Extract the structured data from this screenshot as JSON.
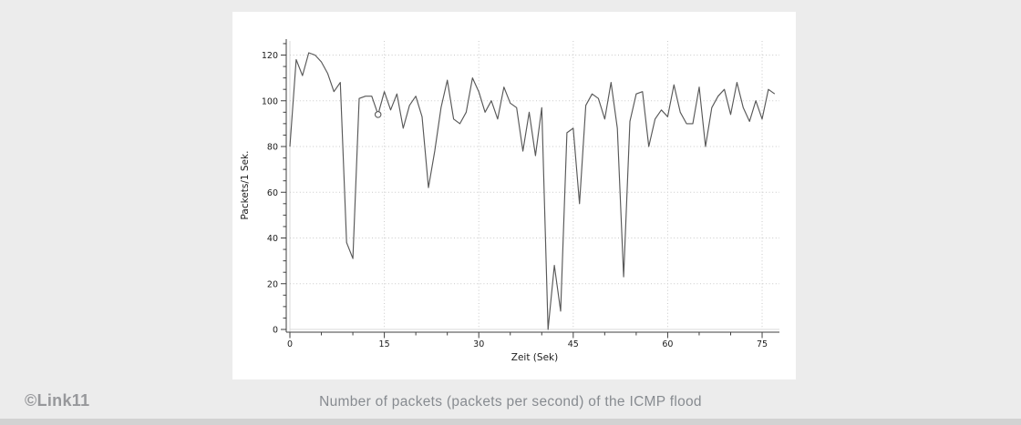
{
  "page": {
    "watermark": "©Link11",
    "caption": "Number of packets (packets per second) of the ICMP flood",
    "background_color": "#ececec",
    "panel_color": "#ffffff"
  },
  "chart_data": {
    "type": "line",
    "title": "",
    "xlabel": "Zeit (Sek)",
    "ylabel": "Packets/1 Sek.",
    "x_ticks": [
      0,
      15,
      30,
      45,
      60,
      75
    ],
    "y_ticks": [
      0,
      20,
      40,
      60,
      80,
      100,
      120
    ],
    "x_minor_step": 5,
    "y_minor_step": 5,
    "xlim": [
      0,
      78
    ],
    "ylim": [
      0,
      126
    ],
    "grid": "dotted",
    "legend": "none",
    "x_start": 0,
    "x_step": 1,
    "values": [
      80,
      118,
      111,
      121,
      120,
      117,
      112,
      104,
      108,
      38,
      31,
      101,
      102,
      102,
      94,
      104,
      96,
      103,
      88,
      98,
      102,
      93,
      62,
      78,
      97,
      109,
      92,
      90,
      95,
      110,
      104,
      95,
      100,
      92,
      106,
      99,
      97,
      78,
      95,
      76,
      97,
      0,
      28,
      8,
      86,
      88,
      55,
      98,
      103,
      101,
      92,
      108,
      88,
      23,
      91,
      103,
      104,
      80,
      92,
      96,
      93,
      107,
      95,
      90,
      90,
      106,
      80,
      97,
      102,
      105,
      94,
      108,
      97,
      91,
      100,
      92,
      105,
      103
    ],
    "highlight_point": {
      "x": 14,
      "y": 94
    },
    "style": {
      "line_color": "#585858",
      "axis_color": "#3f3f3f",
      "grid_color": "#c9c9c9",
      "zero_line_color": "#d9d9d9",
      "marker_fill": "#ffffff"
    }
  }
}
